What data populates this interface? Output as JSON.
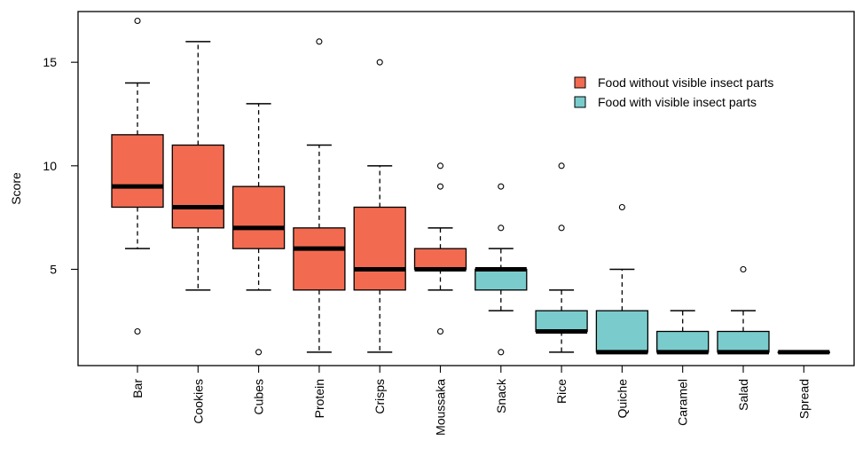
{
  "chart_data": {
    "type": "box",
    "ylabel": "Score",
    "ylim": [
      0.35,
      17.45
    ],
    "yticks": [
      5,
      10,
      15
    ],
    "legend_position": "top-right",
    "colors": {
      "without": "#f26b50",
      "with": "#7acccc",
      "stroke": "#000000"
    },
    "series": [
      {
        "name": "Food without visible insect parts",
        "key": "without"
      },
      {
        "name": "Food with visible insect parts",
        "key": "with"
      }
    ],
    "boxes": [
      {
        "category": "Bar",
        "group": "without",
        "whisker_low": 6,
        "q1": 8,
        "median": 9,
        "q3": 11.5,
        "whisker_high": 14,
        "outliers": [
          2,
          17
        ]
      },
      {
        "category": "Cookies",
        "group": "without",
        "whisker_low": 4,
        "q1": 7,
        "median": 8,
        "q3": 11,
        "whisker_high": 16,
        "outliers": []
      },
      {
        "category": "Cubes",
        "group": "without",
        "whisker_low": 4,
        "q1": 6,
        "median": 7,
        "q3": 9,
        "whisker_high": 13,
        "outliers": [
          1
        ]
      },
      {
        "category": "Protein",
        "group": "without",
        "whisker_low": 1,
        "q1": 4,
        "median": 6,
        "q3": 7,
        "whisker_high": 11,
        "outliers": [
          16
        ]
      },
      {
        "category": "Crisps",
        "group": "without",
        "whisker_low": 1,
        "q1": 4,
        "median": 5,
        "q3": 8,
        "whisker_high": 10,
        "outliers": [
          15
        ]
      },
      {
        "category": "Moussaka",
        "group": "without",
        "whisker_low": 4,
        "q1": 5,
        "median": 5,
        "q3": 6,
        "whisker_high": 7,
        "outliers": [
          2,
          9,
          10
        ]
      },
      {
        "category": "Snack",
        "group": "with",
        "whisker_low": 3,
        "q1": 4,
        "median": 5,
        "q3": 5,
        "whisker_high": 6,
        "outliers": [
          1,
          7,
          9
        ]
      },
      {
        "category": "Rice",
        "group": "with",
        "whisker_low": 1,
        "q1": 2,
        "median": 2,
        "q3": 3,
        "whisker_high": 4,
        "outliers": [
          7,
          10
        ]
      },
      {
        "category": "Quiche",
        "group": "with",
        "whisker_low": 1,
        "q1": 1,
        "median": 1,
        "q3": 3,
        "whisker_high": 5,
        "outliers": [
          8
        ]
      },
      {
        "category": "Caramel",
        "group": "with",
        "whisker_low": 1,
        "q1": 1,
        "median": 1,
        "q3": 2,
        "whisker_high": 3,
        "outliers": []
      },
      {
        "category": "Salad",
        "group": "with",
        "whisker_low": 1,
        "q1": 1,
        "median": 1,
        "q3": 2,
        "whisker_high": 3,
        "outliers": [
          5
        ]
      },
      {
        "category": "Spread",
        "group": "with",
        "whisker_low": 1,
        "q1": 1,
        "median": 1,
        "q3": 1,
        "whisker_high": 1,
        "outliers": []
      }
    ]
  }
}
